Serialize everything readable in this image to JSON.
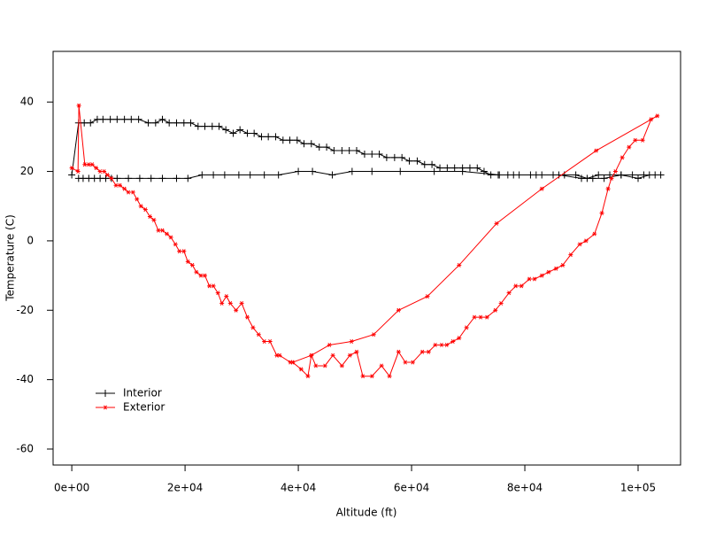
{
  "chart_data": {
    "type": "line",
    "x_label": "Altitude (ft)",
    "y_label": "Temperature (C)",
    "xlim": [
      -3300,
      107500
    ],
    "ylim": [
      -64.6,
      54.6
    ],
    "xticks": [
      {
        "value": 0,
        "label": "0e+00"
      },
      {
        "value": 20000,
        "label": "2e+04"
      },
      {
        "value": 40000,
        "label": "4e+04"
      },
      {
        "value": 60000,
        "label": "6e+04"
      },
      {
        "value": 80000,
        "label": "8e+04"
      },
      {
        "value": 100000,
        "label": "1e+05"
      }
    ],
    "yticks": [
      -60,
      -40,
      -20,
      0,
      20,
      40
    ],
    "legend": "bottom-left",
    "series": [
      {
        "name": "Interior",
        "color": "#000000",
        "marker": "plus",
        "x": [
          0,
          1200,
          2200,
          3300,
          4500,
          5500,
          6800,
          8000,
          9300,
          10500,
          11800,
          13500,
          14800,
          16000,
          17200,
          18500,
          19800,
          21000,
          22300,
          23500,
          24800,
          26000,
          27200,
          28500,
          29700,
          31000,
          32200,
          33500,
          34700,
          36000,
          37300,
          38500,
          39800,
          41000,
          42300,
          43700,
          45000,
          46300,
          47700,
          49000,
          50300,
          51700,
          53000,
          54300,
          55600,
          57000,
          58300,
          59600,
          61000,
          62300,
          63600,
          65000,
          66300,
          67600,
          69000,
          70300,
          71600,
          72800,
          74000,
          75300,
          77000,
          79000,
          81000,
          83000,
          85000,
          87000,
          89000,
          91000,
          93000,
          95000,
          97000,
          99000,
          101000,
          103000,
          104000,
          102000,
          100000,
          97000,
          94000,
          92000,
          90000,
          86000,
          82000,
          78000,
          75500,
          69000,
          64000,
          58000,
          53000,
          49500,
          46000,
          42500,
          40000,
          36500,
          34000,
          31500,
          29500,
          27000,
          25000,
          23000,
          20500,
          18500,
          16000,
          14000,
          12000,
          10000,
          8000,
          7000,
          6000,
          5000,
          4000,
          3000,
          2000,
          1200
        ],
        "values": [
          19,
          34,
          34,
          34,
          35,
          35,
          35,
          35,
          35,
          35,
          35,
          34,
          34,
          35,
          34,
          34,
          34,
          34,
          33,
          33,
          33,
          33,
          32,
          31,
          32,
          31,
          31,
          30,
          30,
          30,
          29,
          29,
          29,
          28,
          28,
          27,
          27,
          26,
          26,
          26,
          26,
          25,
          25,
          25,
          24,
          24,
          24,
          23,
          23,
          22,
          22,
          21,
          21,
          21,
          21,
          21,
          21,
          20,
          19,
          19,
          19,
          19,
          19,
          19,
          19,
          19,
          19,
          18,
          19,
          19,
          19,
          19,
          19,
          19,
          19,
          19,
          18,
          19,
          18,
          18,
          18,
          19,
          19,
          19,
          19,
          20,
          20,
          20,
          20,
          20,
          19,
          20,
          20,
          19,
          19,
          19,
          19,
          19,
          19,
          19,
          18,
          18,
          18,
          18,
          18,
          18,
          18,
          18,
          18,
          18,
          18,
          18,
          18,
          18
        ]
      },
      {
        "name": "Exterior",
        "color": "#ff0000",
        "marker": "star",
        "x": [
          0,
          1100,
          1250,
          2300,
          3000,
          3600,
          4300,
          5000,
          5700,
          6300,
          7000,
          7800,
          8500,
          9300,
          10000,
          10800,
          11500,
          12200,
          13000,
          13800,
          14500,
          15300,
          16000,
          16800,
          17500,
          18300,
          19000,
          19800,
          20500,
          21300,
          22000,
          22800,
          23500,
          24300,
          25000,
          25800,
          26500,
          27300,
          28000,
          29000,
          30000,
          31000,
          32000,
          33000,
          34000,
          35000,
          36200,
          36700,
          38600,
          39000,
          40500,
          41700,
          42300,
          43100,
          44700,
          46100,
          47700,
          49100,
          50300,
          51400,
          53000,
          54700,
          56100,
          57700,
          58900,
          60200,
          61900,
          63000,
          64200,
          65300,
          66200,
          67300,
          68400,
          69700,
          71100,
          72200,
          73300,
          74800,
          75800,
          77200,
          78400,
          79400,
          80800,
          81700,
          83000,
          84200,
          85500,
          86700,
          88100,
          89700,
          90800,
          92300,
          93600,
          94700,
          95300,
          96000,
          97200,
          98400,
          99500,
          100800,
          102300,
          103400,
          92600,
          83000,
          75000,
          68400,
          62800,
          57700,
          53300,
          49400,
          45500,
          42300,
          39000
        ],
        "values": [
          21,
          20,
          39,
          22,
          22,
          22,
          21,
          20,
          20,
          19,
          18,
          16,
          16,
          15,
          14,
          14,
          12,
          10,
          9,
          7,
          6,
          3,
          3,
          2,
          1,
          -1,
          -3,
          -3,
          -6,
          -7,
          -9,
          -10,
          -10,
          -13,
          -13,
          -15,
          -18,
          -16,
          -18,
          -20,
          -18,
          -22,
          -25,
          -27,
          -29,
          -29,
          -33,
          -33,
          -35,
          -35,
          -37,
          -39,
          -33,
          -36,
          -36,
          -33,
          -36,
          -33,
          -32,
          -39,
          -39,
          -36,
          -39,
          -32,
          -35,
          -35,
          -32,
          -32,
          -30,
          -30,
          -30,
          -29,
          -28,
          -25,
          -22,
          -22,
          -22,
          -20,
          -18,
          -15,
          -13,
          -13,
          -11,
          -11,
          -10,
          -9,
          -8,
          -7,
          -4,
          -1,
          0,
          2,
          8,
          15,
          18,
          20,
          24,
          27,
          29,
          29,
          35,
          36,
          26,
          15,
          5,
          -7,
          -16,
          -20,
          -27,
          -29,
          -30,
          -33,
          -35
        ]
      }
    ]
  }
}
